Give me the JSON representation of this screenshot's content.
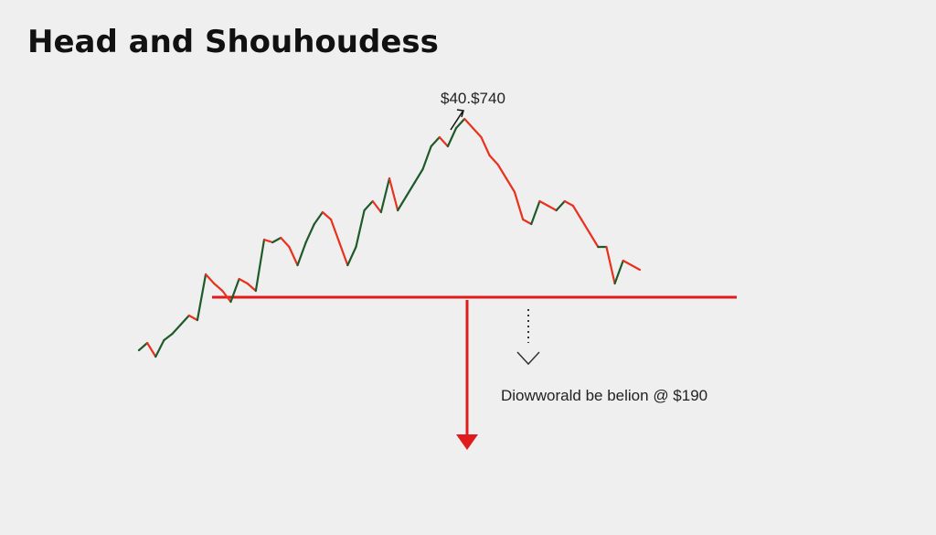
{
  "chart_data": {
    "type": "line",
    "title": "Head and Shouhoudess",
    "annotations": [
      "$40.$740",
      "Diowworald be belion @ $190"
    ],
    "values": [
      17,
      25,
      10,
      28,
      35,
      45,
      55,
      50,
      100,
      90,
      82,
      70,
      95,
      90,
      82,
      138,
      135,
      140,
      130,
      110,
      135,
      155,
      168,
      160,
      135,
      110,
      130,
      170,
      180,
      168,
      205,
      170,
      185,
      200,
      215,
      240,
      250,
      240,
      260,
      270,
      260,
      250,
      230,
      220,
      205,
      190,
      160,
      155,
      180,
      175,
      170,
      180,
      175,
      160,
      145,
      130,
      130,
      90,
      115,
      110,
      105
    ],
    "ylim": [
      0,
      300
    ],
    "up_color": "#1f5a2a",
    "down_color": "#e8321e",
    "neckline_color": "#e01b1b"
  }
}
